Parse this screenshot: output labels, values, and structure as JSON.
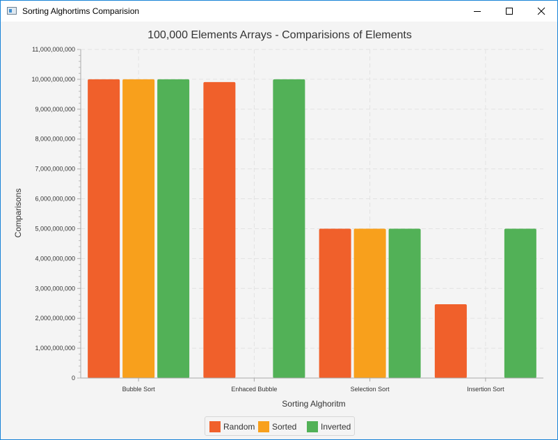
{
  "window": {
    "title": "Sorting Alghortims Comparision"
  },
  "chart_data": {
    "type": "bar",
    "title": "100,000 Elements Arrays - Comparisions of Elements",
    "xlabel": "Sorting Alghoritm",
    "ylabel": "Comparisons",
    "categories": [
      "Bubble Sort",
      "Enhaced Bubble",
      "Selection Sort",
      "Insertion Sort"
    ],
    "ylim": [
      0,
      11000000000
    ],
    "ytick_step": 1000000000,
    "grid": true,
    "legend_position": "bottom",
    "series": [
      {
        "name": "Random",
        "color": "#f0602b",
        "values": [
          9999900000,
          9909000000,
          4999950000,
          2470000000
        ]
      },
      {
        "name": "Sorted",
        "color": "#f8a01c",
        "values": [
          9999900000,
          99999,
          4999950000,
          99999
        ]
      },
      {
        "name": "Inverted",
        "color": "#52b157",
        "values": [
          9999900000,
          9999900000,
          4999950000,
          4999950000
        ]
      }
    ]
  }
}
